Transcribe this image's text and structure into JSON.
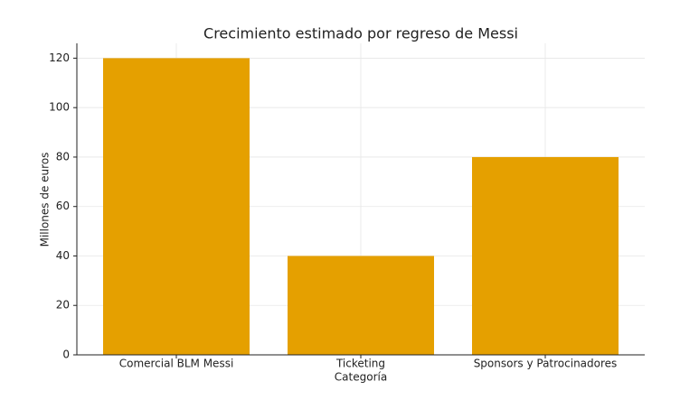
{
  "chart_data": {
    "type": "bar",
    "title": "Crecimiento estimado por regreso de Messi",
    "x_label": "Categoría",
    "y_label": "Millones de euros",
    "categories": [
      "Comercial BLM Messi",
      "Ticketing",
      "Sponsors y Patrocinadores"
    ],
    "values": [
      120,
      40,
      80
    ],
    "color": "#e5a000",
    "ylim": [
      0,
      126
    ],
    "yticks": [
      0,
      20,
      40,
      60,
      80,
      100,
      120
    ],
    "grid": true
  }
}
